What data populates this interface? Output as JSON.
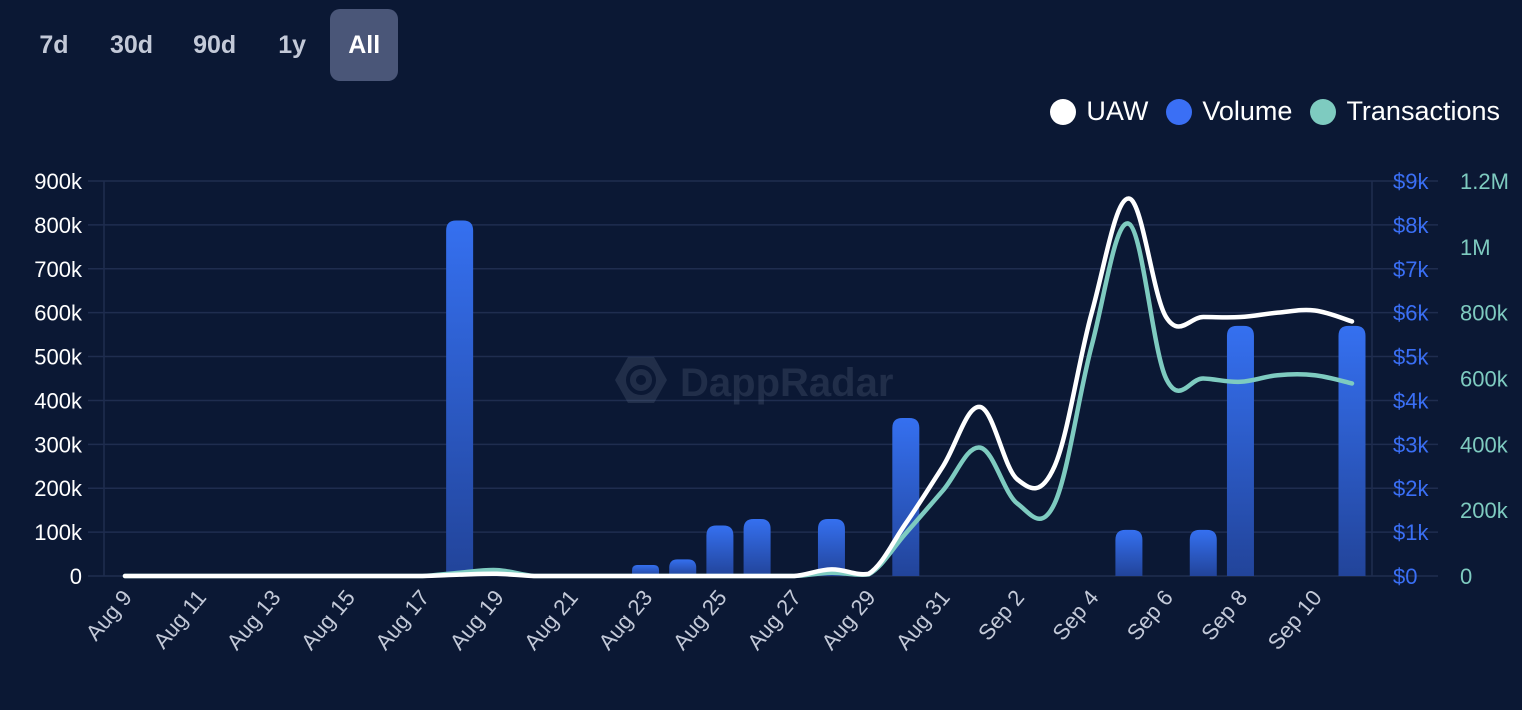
{
  "tabs": [
    {
      "label": "7d",
      "active": false
    },
    {
      "label": "30d",
      "active": false
    },
    {
      "label": "90d",
      "active": false
    },
    {
      "label": "1y",
      "active": false
    },
    {
      "label": "All",
      "active": true
    }
  ],
  "legend": [
    {
      "label": "UAW",
      "color": "#ffffff"
    },
    {
      "label": "Volume",
      "color": "#3a6ff5"
    },
    {
      "label": "Transactions",
      "color": "#7ecbc0"
    }
  ],
  "watermark": "DappRadar",
  "chart_data": {
    "type": "bar+line",
    "categories": [
      "Aug 9",
      "Aug 10",
      "Aug 11",
      "Aug 12",
      "Aug 13",
      "Aug 14",
      "Aug 15",
      "Aug 16",
      "Aug 17",
      "Aug 18",
      "Aug 19",
      "Aug 20",
      "Aug 21",
      "Aug 22",
      "Aug 23",
      "Aug 24",
      "Aug 25",
      "Aug 26",
      "Aug 27",
      "Aug 28",
      "Aug 29",
      "Aug 30",
      "Aug 31",
      "Sep 1",
      "Sep 2",
      "Sep 3",
      "Sep 4",
      "Sep 5",
      "Sep 6",
      "Sep 7",
      "Sep 8",
      "Sep 9",
      "Sep 10",
      "Sep 11"
    ],
    "x_tick_labels": [
      "Aug 9",
      "Aug 11",
      "Aug 13",
      "Aug 15",
      "Aug 17",
      "Aug 19",
      "Aug 21",
      "Aug 23",
      "Aug 25",
      "Aug 27",
      "Aug 29",
      "Aug 31",
      "Sep 2",
      "Sep 4",
      "Sep 6",
      "Sep 8",
      "Sep 10"
    ],
    "axes": {
      "left": {
        "name": "UAW",
        "max": 900000,
        "ticks": [
          "0",
          "100k",
          "200k",
          "300k",
          "400k",
          "500k",
          "600k",
          "700k",
          "800k",
          "900k"
        ],
        "color": "#ffffff"
      },
      "right1": {
        "name": "Volume",
        "max": 9000,
        "ticks": [
          "$0",
          "$1k",
          "$2k",
          "$3k",
          "$4k",
          "$5k",
          "$6k",
          "$7k",
          "$8k",
          "$9k"
        ],
        "color": "#3a6ff5"
      },
      "right2": {
        "name": "Transactions",
        "max": 1200000,
        "ticks": [
          "0",
          "200k",
          "400k",
          "600k",
          "800k",
          "1M",
          "1.2M"
        ],
        "color": "#7ecbc0"
      }
    },
    "series": [
      {
        "name": "UAW",
        "type": "line",
        "axis": "left",
        "color": "#ffffff",
        "values": [
          0,
          0,
          0,
          0,
          0,
          0,
          0,
          0,
          0,
          3000,
          5000,
          0,
          0,
          0,
          0,
          0,
          0,
          0,
          0,
          15000,
          5000,
          120000,
          250000,
          385000,
          220000,
          250000,
          600000,
          860000,
          590000,
          590000,
          590000,
          600000,
          605000,
          580000
        ]
      },
      {
        "name": "Volume",
        "type": "bar",
        "axis": "right1",
        "color": "#3a6ff5",
        "values": [
          0,
          0,
          0,
          0,
          0,
          0,
          0,
          0,
          0,
          8100,
          0,
          0,
          0,
          0,
          250,
          380,
          1150,
          1300,
          0,
          1300,
          0,
          3600,
          0,
          0,
          0,
          0,
          0,
          1050,
          0,
          1050,
          5700,
          0,
          0,
          5700
        ]
      },
      {
        "name": "Transactions",
        "type": "line",
        "axis": "right2",
        "color": "#7ecbc0",
        "values": [
          0,
          0,
          0,
          0,
          0,
          0,
          0,
          0,
          0,
          10000,
          18000,
          0,
          0,
          0,
          0,
          0,
          0,
          0,
          0,
          10000,
          5000,
          130000,
          260000,
          390000,
          220000,
          220000,
          700000,
          1070000,
          600000,
          600000,
          590000,
          610000,
          610000,
          585000
        ]
      }
    ]
  }
}
